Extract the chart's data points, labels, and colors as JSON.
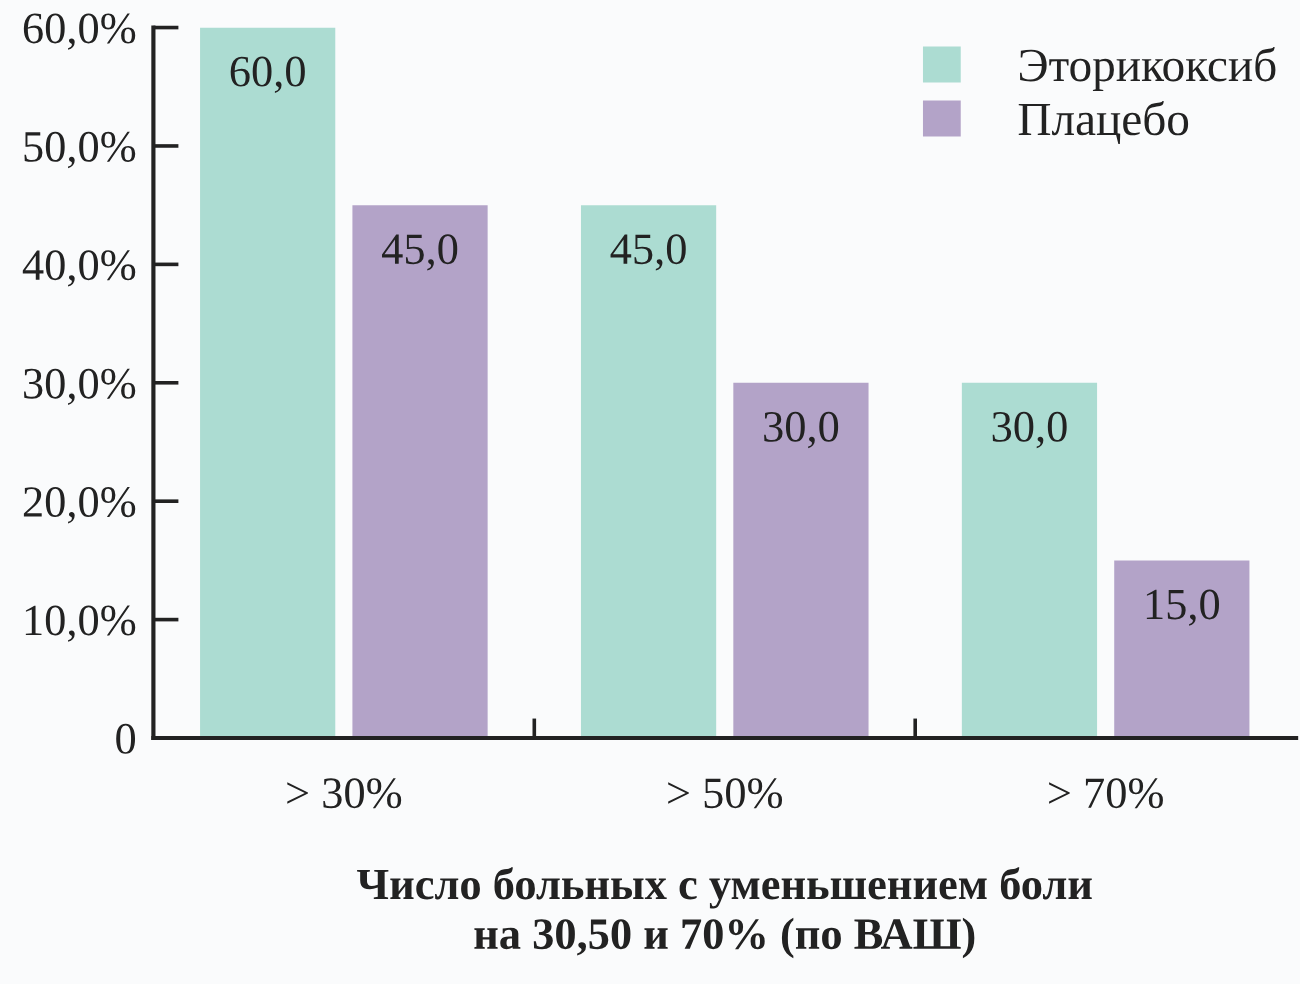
{
  "chart_data": {
    "type": "bar",
    "xlabel": "Число больных с уменьшением боли\nна 30,50 и 70% (по ВАШ)",
    "categories": [
      "> 30%",
      "> 50%",
      "> 70%"
    ],
    "series": [
      {
        "name": "Эторикоксиб",
        "color": "#acdcd2",
        "values": [
          60,
          45,
          30
        ],
        "value_labels": [
          "60,0",
          "45,0",
          "30,0"
        ]
      },
      {
        "name": "Плацебо",
        "color": "#b3a3c8",
        "values": [
          45,
          30,
          15
        ],
        "value_labels": [
          "45,0",
          "30,0",
          "15,0"
        ]
      }
    ],
    "ylim": [
      0,
      60
    ],
    "yticks": [
      0,
      {
        "value": 10,
        "label": "10,0%"
      },
      {
        "value": 20,
        "label": "20,0%"
      },
      {
        "value": 30,
        "label": "30,0%"
      },
      {
        "value": 40,
        "label": "40,0%"
      },
      {
        "value": 50,
        "label": "50,0%"
      },
      {
        "value": 60,
        "label": "60,0%"
      }
    ],
    "legend": "top right",
    "grid": false
  }
}
